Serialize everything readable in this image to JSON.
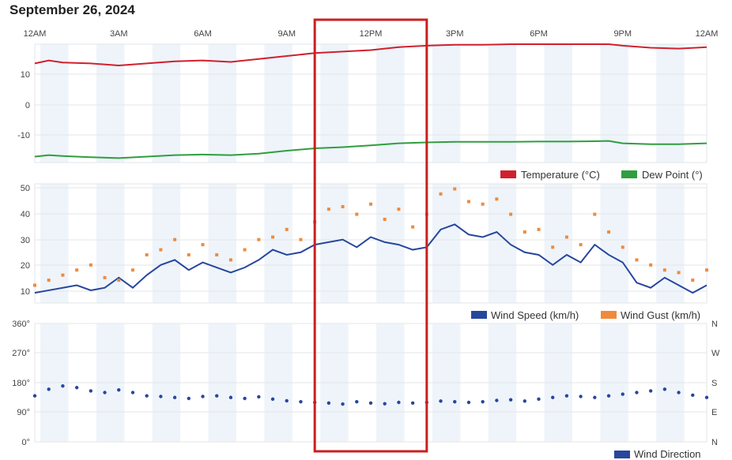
{
  "page": {
    "title": "September 26, 2024"
  },
  "colors": {
    "temperature": "#d0202e",
    "dew_point": "#2f9e3f",
    "wind_speed": "#27479e",
    "wind_gust": "#f08a3c",
    "wind_direction": "#27479e",
    "highlight": "#cc1f1f",
    "band": "#eef4fa"
  },
  "x_axis": {
    "start": "2024-09-26 00:00",
    "end": "2024-09-27 00:00",
    "tick_labels": [
      "12AM",
      "3AM",
      "6AM",
      "9AM",
      "12PM",
      "3PM",
      "6PM",
      "9PM",
      "12AM"
    ]
  },
  "highlight_box": {
    "from": "10:00",
    "to": "14:00"
  },
  "chart_data": [
    {
      "type": "line",
      "x_unit": "hour of day",
      "ylim": [
        -20,
        20
      ],
      "y_ticks": [
        "10",
        "0",
        "-10"
      ],
      "grid": true,
      "legend": "bottom-right",
      "series": [
        {
          "name": "Temperature (°C)",
          "x": [
            0,
            0.5,
            1,
            2,
            3,
            4,
            5,
            6,
            7,
            8,
            9,
            10,
            11,
            12,
            13,
            14,
            15,
            16,
            17,
            18,
            19,
            20,
            20.5,
            21,
            22,
            23,
            24
          ],
          "values": [
            13.5,
            14.5,
            13.8,
            13.5,
            12.8,
            13.5,
            14.2,
            14.5,
            14.0,
            15.0,
            16.0,
            17.0,
            17.5,
            18.0,
            19.0,
            19.5,
            19.8,
            19.8,
            20.0,
            20.0,
            20.0,
            20.0,
            20.0,
            19.5,
            18.8,
            18.5,
            19.0
          ]
        },
        {
          "name": "Dew Point (°)",
          "x": [
            0,
            0.5,
            1,
            2,
            3,
            4,
            5,
            6,
            7,
            8,
            9,
            10,
            11,
            12,
            13,
            14,
            15,
            16,
            17,
            18,
            19,
            20,
            20.5,
            21,
            22,
            23,
            24
          ],
          "values": [
            -18,
            -17.5,
            -17.8,
            -18.2,
            -18.5,
            -18,
            -17.5,
            -17.3,
            -17.5,
            -17.0,
            -16.0,
            -15.2,
            -14.8,
            -14.2,
            -13.5,
            -13.2,
            -13.0,
            -13.0,
            -13.0,
            -12.9,
            -12.9,
            -12.8,
            -12.7,
            -13.5,
            -13.8,
            -13.8,
            -13.5
          ]
        }
      ]
    },
    {
      "type": "line",
      "x_unit": "hour of day",
      "ylim": [
        5,
        52
      ],
      "y_ticks": [
        "50",
        "40",
        "30",
        "20",
        "10"
      ],
      "grid": true,
      "legend": "bottom-right",
      "series": [
        {
          "name": "Wind Speed (km/h)",
          "x": [
            0,
            0.5,
            1,
            1.5,
            2,
            2.5,
            3,
            3.5,
            4,
            4.5,
            5,
            5.5,
            6,
            6.5,
            7,
            7.5,
            8,
            8.5,
            9,
            9.5,
            10,
            10.5,
            11,
            11.5,
            12,
            12.5,
            13,
            13.5,
            14,
            14.5,
            15,
            15.5,
            16,
            16.5,
            17,
            17.5,
            18,
            18.5,
            19,
            19.5,
            20,
            20.5,
            21,
            21.5,
            22,
            22.5,
            23,
            23.5,
            24
          ],
          "values": [
            9,
            10,
            11,
            12,
            10,
            11,
            15,
            11,
            16,
            20,
            22,
            18,
            21,
            19,
            17,
            19,
            22,
            26,
            24,
            25,
            28,
            29,
            30,
            27,
            31,
            29,
            28,
            26,
            27,
            34,
            36,
            32,
            31,
            33,
            28,
            25,
            24,
            20,
            24,
            21,
            28,
            24,
            21,
            13,
            11,
            15,
            12,
            9,
            12
          ]
        },
        {
          "name": "Wind Gust (km/h)",
          "x": [
            0,
            0.5,
            1,
            1.5,
            2,
            2.5,
            3,
            3.5,
            4,
            4.5,
            5,
            5.5,
            6,
            6.5,
            7,
            7.5,
            8,
            8.5,
            9,
            9.5,
            10,
            10.5,
            11,
            11.5,
            12,
            12.5,
            13,
            13.5,
            14,
            14.5,
            15,
            15.5,
            16,
            16.5,
            17,
            17.5,
            18,
            18.5,
            19,
            19.5,
            20,
            20.5,
            21,
            21.5,
            22,
            22.5,
            23,
            23.5,
            24
          ],
          "values": [
            12,
            14,
            16,
            18,
            20,
            15,
            14,
            18,
            24,
            26,
            30,
            24,
            28,
            24,
            22,
            26,
            30,
            31,
            34,
            30,
            37,
            42,
            43,
            40,
            44,
            38,
            42,
            35,
            40,
            48,
            50,
            45,
            44,
            46,
            40,
            33,
            34,
            27,
            31,
            28,
            40,
            33,
            27,
            22,
            20,
            18,
            17,
            14,
            18
          ]
        }
      ]
    },
    {
      "type": "scatter",
      "x_unit": "hour of day",
      "ylim": [
        0,
        360
      ],
      "y_ticks": [
        "360°",
        "270°",
        "180°",
        "90°",
        "0°"
      ],
      "y_ticks_right": [
        "N",
        "W",
        "S",
        "E",
        "N"
      ],
      "grid": true,
      "legend": "bottom-right",
      "series": [
        {
          "name": "Wind Direction",
          "x": [
            0,
            0.5,
            1,
            1.5,
            2,
            2.5,
            3,
            3.5,
            4,
            4.5,
            5,
            5.5,
            6,
            6.5,
            7,
            7.5,
            8,
            8.5,
            9,
            9.5,
            10,
            10.5,
            11,
            11.5,
            12,
            12.5,
            13,
            13.5,
            14,
            14.5,
            15,
            15.5,
            16,
            16.5,
            17,
            17.5,
            18,
            18.5,
            19,
            19.5,
            20,
            20.5,
            21,
            21.5,
            22,
            22.5,
            23,
            23.5,
            24
          ],
          "values": [
            140,
            160,
            170,
            165,
            155,
            150,
            158,
            150,
            140,
            138,
            135,
            132,
            138,
            140,
            135,
            132,
            137,
            130,
            125,
            122,
            120,
            118,
            115,
            122,
            118,
            116,
            120,
            118,
            120,
            124,
            122,
            120,
            122,
            126,
            128,
            124,
            130,
            135,
            140,
            138,
            135,
            140,
            145,
            150,
            155,
            160,
            150,
            142,
            135
          ]
        }
      ]
    }
  ]
}
